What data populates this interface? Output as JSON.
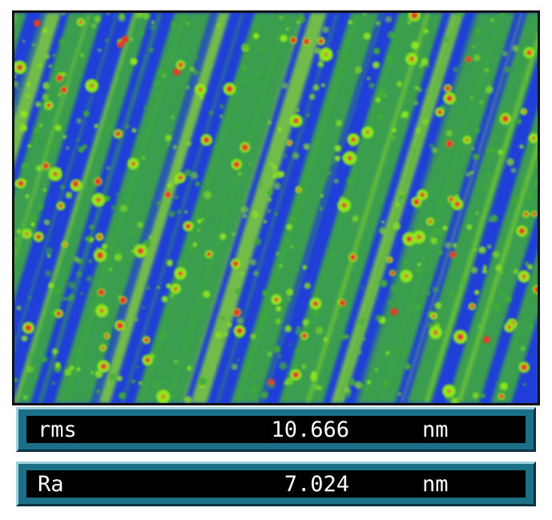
{
  "image": {
    "type": "afm-topography-height-map",
    "colormap": [
      "#1f3fd8",
      "#3fae35",
      "#8ee61c",
      "#e43a2a"
    ],
    "stripe_orientation": "diagonal"
  },
  "stats": [
    {
      "name": "rms",
      "value": "10.666",
      "unit": "nm"
    },
    {
      "name": "Ra",
      "value": "7.024",
      "unit": "nm"
    }
  ]
}
